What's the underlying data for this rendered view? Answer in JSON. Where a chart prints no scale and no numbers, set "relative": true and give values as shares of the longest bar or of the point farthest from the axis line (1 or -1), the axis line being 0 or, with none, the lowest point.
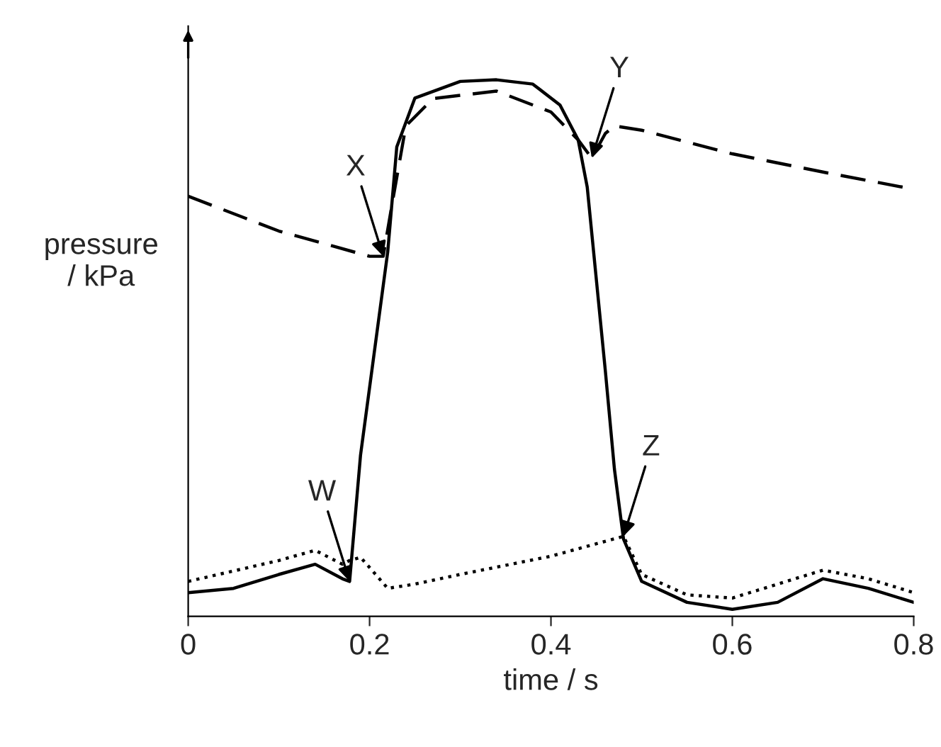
{
  "chart_data": {
    "type": "line",
    "relative": true,
    "xlabel": "time / s",
    "ylabel": "pressure\n/ kPa",
    "xlim": [
      0,
      0.8
    ],
    "xticks": [
      0,
      0.2,
      0.4,
      0.6,
      0.8
    ],
    "grid": false,
    "tick_labels": "x",
    "series": [
      {
        "color": "#000000",
        "line_style": "solid",
        "x": [
          0,
          0.05,
          0.1,
          0.14,
          0.17,
          0.178,
          0.19,
          0.22,
          0.23,
          0.25,
          0.3,
          0.34,
          0.38,
          0.41,
          0.43,
          0.44,
          0.46,
          0.47,
          0.48,
          0.5,
          0.55,
          0.6,
          0.65,
          0.7,
          0.75,
          0.8
        ],
        "values": [
          0.044,
          0.052,
          0.078,
          0.097,
          0.07,
          0.065,
          0.3,
          0.679,
          0.875,
          0.966,
          0.997,
          1.0,
          0.992,
          0.953,
          0.888,
          0.8,
          0.457,
          0.274,
          0.144,
          0.065,
          0.026,
          0.013,
          0.026,
          0.07,
          0.052,
          0.026
        ]
      },
      {
        "color": "#000000",
        "line_style": "dashed",
        "x": [
          0,
          0.1,
          0.2,
          0.215,
          0.225,
          0.24,
          0.27,
          0.34,
          0.4,
          0.43,
          0.445,
          0.46,
          0.47,
          0.5,
          0.6,
          0.7,
          0.8
        ],
        "values": [
          0.783,
          0.718,
          0.671,
          0.671,
          0.77,
          0.914,
          0.965,
          0.979,
          0.94,
          0.888,
          0.854,
          0.9,
          0.914,
          0.906,
          0.862,
          0.828,
          0.796
        ]
      },
      {
        "color": "#000000",
        "line_style": "dotted",
        "x": [
          0,
          0.1,
          0.14,
          0.17,
          0.178,
          0.19,
          0.2,
          0.22,
          0.25,
          0.3,
          0.4,
          0.48,
          0.5,
          0.55,
          0.6,
          0.7,
          0.75,
          0.8
        ],
        "values": [
          0.065,
          0.104,
          0.123,
          0.097,
          0.104,
          0.11,
          0.091,
          0.052,
          0.06,
          0.078,
          0.112,
          0.149,
          0.078,
          0.04,
          0.034,
          0.086,
          0.07,
          0.044
        ]
      }
    ],
    "annotations": [
      {
        "text": "W",
        "x": 0.178,
        "y": 0.065
      },
      {
        "text": "X",
        "x": 0.215,
        "y": 0.671
      },
      {
        "text": "Y",
        "x": 0.445,
        "y": 0.854
      },
      {
        "text": "Z",
        "x": 0.48,
        "y": 0.149
      }
    ]
  }
}
